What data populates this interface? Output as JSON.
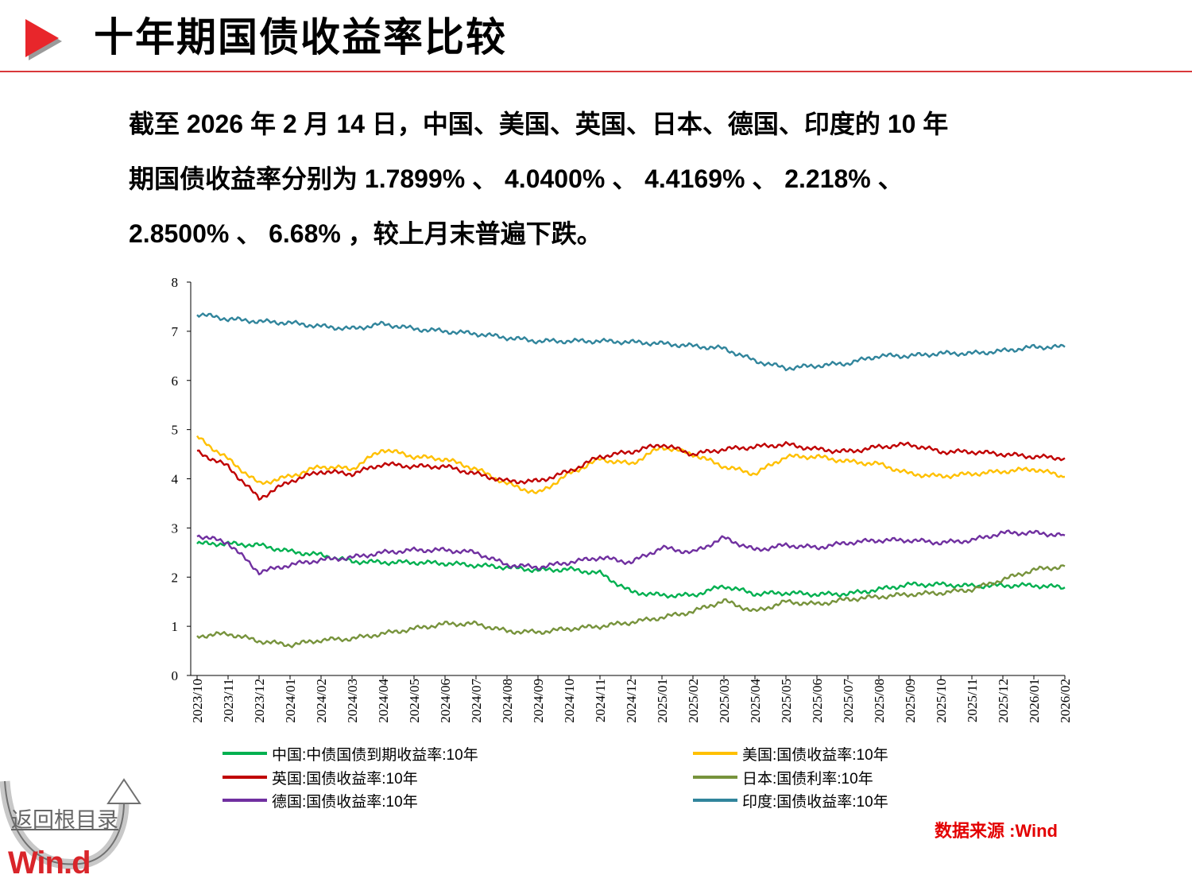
{
  "header": {
    "title": "十年期国债收益率比较",
    "arrow_icon": "play-triangle-icon",
    "accent_color": "#e8262b"
  },
  "summary": {
    "line1": "截至 2026 年 2 月 14 日，中国、美国、英国、日本、德国、印度的 10 年",
    "line2": "期国债收益率分别为 1.7899% 、 4.0400% 、 4.4169% 、 2.218% 、",
    "line3": "2.8500% 、 6.68% ，较上月末普遍下跌。"
  },
  "chart_data": {
    "type": "line",
    "ylim": [
      0,
      8
    ],
    "yticks": [
      "0",
      "1",
      "2",
      "3",
      "4",
      "5",
      "6",
      "7",
      "8"
    ],
    "x": [
      "2023/10",
      "2023/11",
      "2023/12",
      "2024/01",
      "2024/02",
      "2024/03",
      "2024/04",
      "2024/05",
      "2024/06",
      "2024/07",
      "2024/08",
      "2024/09",
      "2024/10",
      "2024/11",
      "2024/12",
      "2025/01",
      "2025/02",
      "2025/03",
      "2025/04",
      "2025/05",
      "2025/06",
      "2025/07",
      "2025/08",
      "2025/09",
      "2025/10",
      "2025/11",
      "2025/12",
      "2026/01",
      "2026/02"
    ],
    "series": [
      {
        "name": "中国:中债国债到期收益率:10年",
        "color": "#00b050",
        "values": [
          2.68,
          2.68,
          2.65,
          2.52,
          2.45,
          2.32,
          2.3,
          2.3,
          2.28,
          2.24,
          2.2,
          2.14,
          2.16,
          2.08,
          1.7,
          1.63,
          1.63,
          1.82,
          1.66,
          1.68,
          1.65,
          1.66,
          1.75,
          1.85,
          1.85,
          1.82,
          1.83,
          1.83,
          1.79
        ]
      },
      {
        "name": "美国:国债收益率:10年",
        "color": "#ffc000",
        "values": [
          4.85,
          4.4,
          3.9,
          4.05,
          4.25,
          4.2,
          4.6,
          4.45,
          4.4,
          4.2,
          3.9,
          3.7,
          4.1,
          4.4,
          4.3,
          4.65,
          4.5,
          4.25,
          4.1,
          4.45,
          4.45,
          4.35,
          4.3,
          4.1,
          4.05,
          4.1,
          4.15,
          4.2,
          4.04
        ]
      },
      {
        "name": "英国:国债收益率:10年",
        "color": "#c00000",
        "values": [
          4.55,
          4.25,
          3.6,
          3.95,
          4.15,
          4.1,
          4.3,
          4.25,
          4.25,
          4.1,
          3.95,
          3.95,
          4.15,
          4.45,
          4.55,
          4.7,
          4.5,
          4.6,
          4.65,
          4.7,
          4.6,
          4.55,
          4.65,
          4.7,
          4.55,
          4.55,
          4.5,
          4.45,
          4.42
        ]
      },
      {
        "name": "日本:国债利率:10年",
        "color": "#77933c",
        "values": [
          0.8,
          0.85,
          0.7,
          0.62,
          0.72,
          0.75,
          0.85,
          0.95,
          1.05,
          1.05,
          0.9,
          0.88,
          0.95,
          1.0,
          1.08,
          1.18,
          1.3,
          1.52,
          1.3,
          1.5,
          1.45,
          1.55,
          1.6,
          1.65,
          1.68,
          1.75,
          1.95,
          2.15,
          2.22
        ]
      },
      {
        "name": "德国:国债收益率:10年",
        "color": "#7030a0",
        "values": [
          2.85,
          2.7,
          2.1,
          2.25,
          2.35,
          2.4,
          2.5,
          2.55,
          2.55,
          2.5,
          2.25,
          2.2,
          2.3,
          2.4,
          2.3,
          2.6,
          2.5,
          2.8,
          2.55,
          2.65,
          2.6,
          2.7,
          2.75,
          2.75,
          2.7,
          2.75,
          2.9,
          2.9,
          2.85
        ]
      },
      {
        "name": "印度:国债收益率:10年",
        "color": "#31859c",
        "values": [
          7.35,
          7.25,
          7.2,
          7.17,
          7.1,
          7.05,
          7.15,
          7.05,
          7.0,
          6.95,
          6.87,
          6.8,
          6.8,
          6.8,
          6.78,
          6.75,
          6.7,
          6.65,
          6.4,
          6.25,
          6.3,
          6.35,
          6.5,
          6.5,
          6.55,
          6.55,
          6.6,
          6.68,
          6.68
        ]
      }
    ]
  },
  "source": "数据来源 :Wind",
  "nav": {
    "back_label": "返回根目录",
    "back_icon": "curved-return-arrow-icon"
  },
  "logo": {
    "text": "Win.d"
  }
}
